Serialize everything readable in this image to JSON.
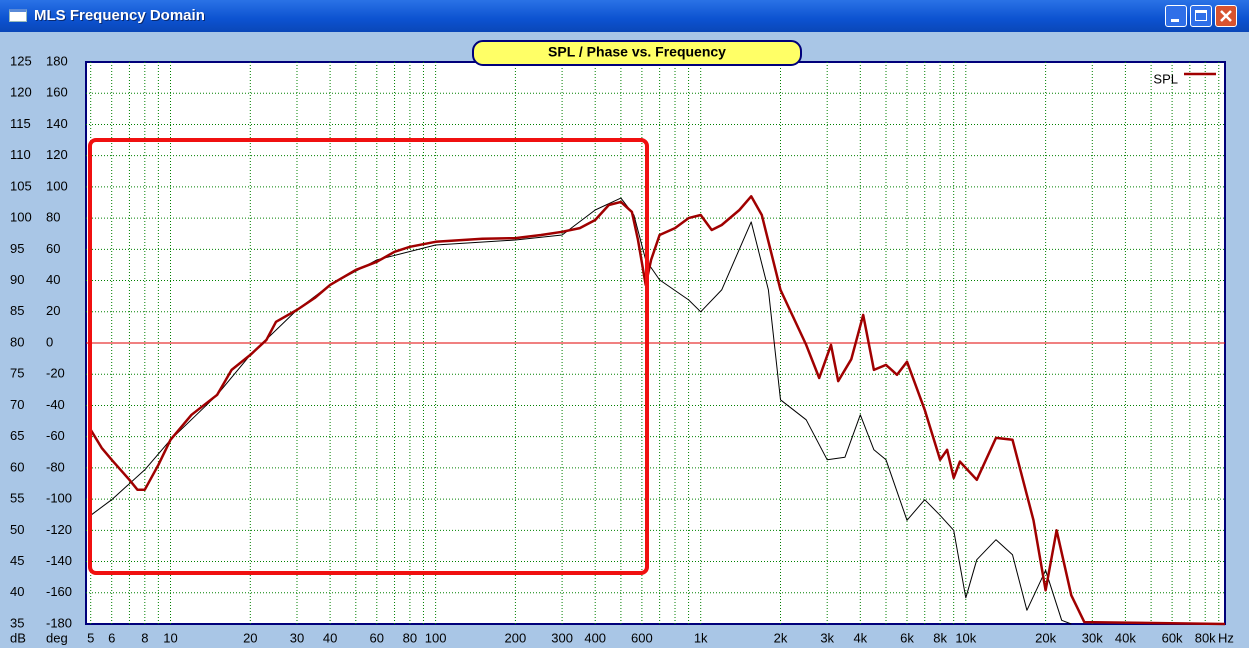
{
  "window_title": "MLS Frequency Domain",
  "chart_data": {
    "type": "line",
    "title": "SPL / Phase vs. Frequency",
    "y_unit": "dB",
    "y2_unit": "deg",
    "x_unit": "Hz",
    "log_x": true,
    "xlim": [
      4.8,
      95000
    ],
    "ylim": [
      35,
      125
    ],
    "y2lim": [
      -180,
      180
    ],
    "xticks": [
      5,
      6,
      8,
      10,
      20,
      30,
      40,
      60,
      80,
      100,
      200,
      300,
      400,
      600,
      {
        "value": 1000,
        "label": "1k"
      },
      {
        "value": 2000,
        "label": "2k"
      },
      {
        "value": 3000,
        "label": "3k"
      },
      {
        "value": 4000,
        "label": "4k"
      },
      {
        "value": 6000,
        "label": "6k"
      },
      {
        "value": 8000,
        "label": "8k"
      },
      {
        "value": 10000,
        "label": "10k"
      },
      {
        "value": 20000,
        "label": "20k"
      },
      {
        "value": 30000,
        "label": "30k"
      },
      {
        "value": 40000,
        "label": "40k"
      },
      {
        "value": 60000,
        "label": "60k"
      },
      {
        "value": 80000,
        "label": "80k"
      }
    ],
    "xgrid": [
      5,
      6,
      7,
      8,
      9,
      10,
      20,
      30,
      40,
      50,
      60,
      70,
      80,
      90,
      100,
      200,
      300,
      400,
      500,
      600,
      700,
      800,
      900,
      1000,
      2000,
      3000,
      4000,
      5000,
      6000,
      7000,
      8000,
      9000,
      10000,
      20000,
      30000,
      40000,
      50000,
      60000,
      70000,
      80000,
      90000
    ],
    "yticks": [
      35,
      40,
      45,
      50,
      55,
      60,
      65,
      70,
      75,
      80,
      85,
      90,
      95,
      100,
      105,
      110,
      115,
      120,
      125
    ],
    "y2ticks": [
      -180,
      -160,
      -140,
      -120,
      -100,
      -80,
      -60,
      -40,
      -20,
      0,
      20,
      40,
      60,
      80,
      100,
      120,
      140,
      160,
      180
    ],
    "grid": true,
    "grid_color": "#008000",
    "zero_line_color": "#e00000",
    "legend": "upper right",
    "series": [
      {
        "name": "SPL",
        "color": "#a00000",
        "x": [
          5,
          5.5,
          6,
          7,
          7.5,
          8,
          9,
          10,
          12,
          15,
          17,
          20,
          23,
          25,
          30,
          35,
          40,
          50,
          60,
          70,
          80,
          100,
          150,
          200,
          250,
          300,
          350,
          400,
          450,
          500,
          550,
          580,
          620,
          650,
          700,
          800,
          900,
          1000,
          1100,
          1200,
          1400,
          1550,
          1700,
          2000,
          2500,
          2800,
          3100,
          3300,
          3700,
          4100,
          4500,
          5000,
          5500,
          6000,
          7000,
          8000,
          8500,
          9000,
          9500,
          11000,
          13000,
          15000,
          18000,
          20000,
          22000,
          25000,
          28000,
          95000
        ],
        "values": [
          66.1,
          63.2,
          61.3,
          58.1,
          56.5,
          56.5,
          60.5,
          64.5,
          68.5,
          71.7,
          75.7,
          78.1,
          80.5,
          83.4,
          85.3,
          87.2,
          89.3,
          91.7,
          93.0,
          94.6,
          95.4,
          96.2,
          96.7,
          96.8,
          97.3,
          97.8,
          98.4,
          99.7,
          102.1,
          102.6,
          101.0,
          96.5,
          89.3,
          93.3,
          97.3,
          98.4,
          100.0,
          100.5,
          98.1,
          98.9,
          101.3,
          103.5,
          100.5,
          88.5,
          79.7,
          74.4,
          79.7,
          73.9,
          77.4,
          84.5,
          75.7,
          76.5,
          74.9,
          77.0,
          69.3,
          61.3,
          62.9,
          58.4,
          61.0,
          58.1,
          64.8,
          64.5,
          51.6,
          40.4,
          50.0,
          39.6,
          35.3,
          35
        ]
      },
      {
        "color": "#000000",
        "x": [
          5,
          6,
          8,
          10,
          15,
          20,
          30,
          40,
          60,
          100,
          200,
          300,
          400,
          500,
          560,
          620,
          700,
          900,
          1000,
          1200,
          1550,
          1800,
          2000,
          2500,
          3000,
          3500,
          4000,
          4500,
          5000,
          6000,
          7000,
          8000,
          9000,
          10000,
          11000,
          13000,
          15000,
          17000,
          20000,
          23000,
          25000
        ],
        "values": [
          52.4,
          54.9,
          59.7,
          64.5,
          71.7,
          78.1,
          85.3,
          89.3,
          93.3,
          95.7,
          96.5,
          97.3,
          101.3,
          103.2,
          100.5,
          93.3,
          90.1,
          86.9,
          85.0,
          88.5,
          99.4,
          88.5,
          70.9,
          67.7,
          61.3,
          61.7,
          68.5,
          62.9,
          61.3,
          51.6,
          54.9,
          52.4,
          50.0,
          39.2,
          45.3,
          48.5,
          46.1,
          37.2,
          43.6,
          35.6,
          35
        ]
      }
    ]
  }
}
